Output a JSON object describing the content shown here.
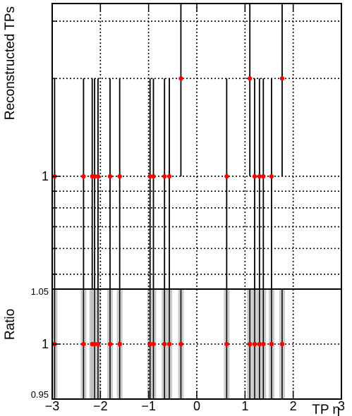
{
  "chart_data": [
    {
      "type": "scatter",
      "panel": "top",
      "xlabel": "",
      "ylabel": "Reconstructed TPs",
      "y_scale": "log",
      "ylim": [
        0.45,
        3.4
      ],
      "y_tick_labels": [
        {
          "value": 1,
          "label": "1"
        }
      ],
      "grid": true,
      "marker_color": "#ff0000",
      "points": [
        {
          "x": -2.95,
          "y": 1,
          "err_low": 0.55,
          "err_high": 1.0
        },
        {
          "x": -2.35,
          "y": 1,
          "err_low": 0.55,
          "err_high": 1.0
        },
        {
          "x": -2.17,
          "y": 1,
          "err_low": 0.55,
          "err_high": 1.0
        },
        {
          "x": -2.12,
          "y": 1,
          "err_low": 0.55,
          "err_high": 1.0
        },
        {
          "x": -2.05,
          "y": 1,
          "err_low": 0.55,
          "err_high": 1.0
        },
        {
          "x": -1.8,
          "y": 1,
          "err_low": 0.55,
          "err_high": 1.0
        },
        {
          "x": -1.6,
          "y": 1,
          "err_low": 0.55,
          "err_high": 1.0
        },
        {
          "x": -0.97,
          "y": 1,
          "err_low": 0.55,
          "err_high": 1.0
        },
        {
          "x": -0.9,
          "y": 1,
          "err_low": 0.55,
          "err_high": 1.0
        },
        {
          "x": -0.67,
          "y": 1,
          "err_low": 0.55,
          "err_high": 1.0
        },
        {
          "x": -0.57,
          "y": 1,
          "err_low": 0.55,
          "err_high": 1.0
        },
        {
          "x": -0.33,
          "y": 2,
          "err_low": 1.0,
          "err_high": 1.4
        },
        {
          "x": 0.62,
          "y": 1,
          "err_low": 0.55,
          "err_high": 1.0
        },
        {
          "x": 1.1,
          "y": 2,
          "err_low": 1.0,
          "err_high": 1.4
        },
        {
          "x": 1.2,
          "y": 1,
          "err_low": 0.55,
          "err_high": 1.0
        },
        {
          "x": 1.3,
          "y": 1,
          "err_low": 0.55,
          "err_high": 1.0
        },
        {
          "x": 1.38,
          "y": 1,
          "err_low": 0.55,
          "err_high": 1.0
        },
        {
          "x": 1.55,
          "y": 1,
          "err_low": 0.55,
          "err_high": 1.0
        },
        {
          "x": 1.77,
          "y": 2,
          "err_low": 1.0,
          "err_high": 1.4
        }
      ]
    },
    {
      "type": "scatter",
      "panel": "bottom",
      "xlabel": "TP η",
      "ylabel": "Ratio",
      "xlim": [
        -3,
        3
      ],
      "ylim": [
        0.95,
        1.05
      ],
      "x_ticks": [
        -3,
        -2,
        -1,
        0,
        1,
        2,
        3
      ],
      "x_tick_labels": [
        "−3",
        "−2",
        "−1",
        "0",
        "1",
        "2",
        "3"
      ],
      "y_tick_labels": [
        {
          "value": 0.95,
          "label": "0.95"
        },
        {
          "value": 1,
          "label": "1"
        },
        {
          "value": 1.05,
          "label": "1.05"
        }
      ],
      "grid": true,
      "marker_color": "#ff0000",
      "band_color": "#cccccc",
      "points": [
        {
          "x": -2.95,
          "y": 1
        },
        {
          "x": -2.35,
          "y": 1
        },
        {
          "x": -2.17,
          "y": 1
        },
        {
          "x": -2.12,
          "y": 1
        },
        {
          "x": -2.05,
          "y": 1
        },
        {
          "x": -1.8,
          "y": 1
        },
        {
          "x": -1.6,
          "y": 1
        },
        {
          "x": -0.97,
          "y": 1
        },
        {
          "x": -0.9,
          "y": 1
        },
        {
          "x": -0.67,
          "y": 1
        },
        {
          "x": -0.57,
          "y": 1
        },
        {
          "x": -0.33,
          "y": 1
        },
        {
          "x": 0.62,
          "y": 1
        },
        {
          "x": 1.1,
          "y": 1
        },
        {
          "x": 1.2,
          "y": 1
        },
        {
          "x": 1.3,
          "y": 1
        },
        {
          "x": 1.38,
          "y": 1
        },
        {
          "x": 1.55,
          "y": 1
        },
        {
          "x": 1.77,
          "y": 1
        }
      ]
    }
  ]
}
